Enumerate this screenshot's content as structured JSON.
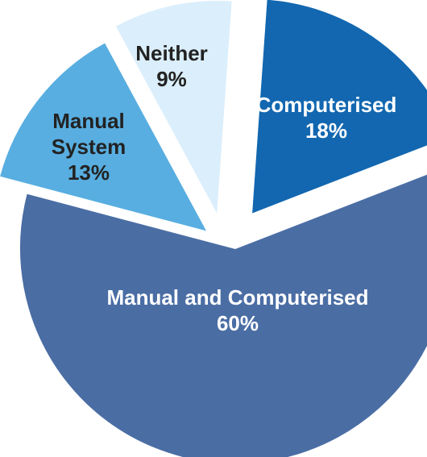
{
  "chart_data": {
    "type": "pie",
    "exploded": true,
    "slices": [
      {
        "label": "Computerised",
        "value": 18,
        "display": "18%",
        "color": "#1267b0",
        "text_color": "#ffffff"
      },
      {
        "label": "Manual and Computerised",
        "value": 60,
        "display": "60%",
        "color": "#4a6da4",
        "text_color": "#ffffff"
      },
      {
        "label": "Manual\nSystem",
        "value": 13,
        "display": "13%",
        "color": "#58aee0",
        "text_color": "#222222"
      },
      {
        "label": "Neither",
        "value": 9,
        "display": "9%",
        "color": "#dbeefb",
        "text_color": "#222222"
      }
    ]
  }
}
